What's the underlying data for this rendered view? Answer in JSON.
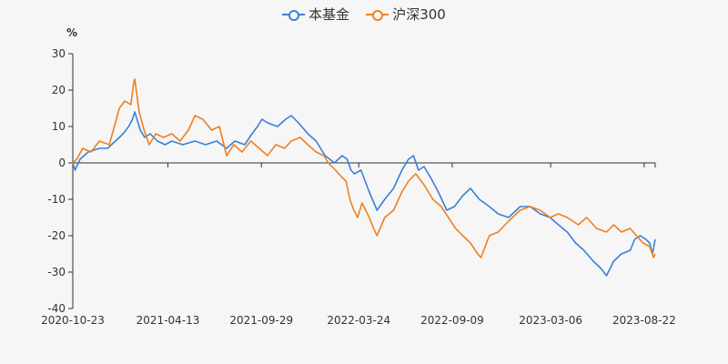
{
  "chart_data": {
    "type": "line",
    "title": "",
    "unit_label": "%",
    "xlabel": "",
    "ylabel": "%",
    "ylim": [
      -40,
      30
    ],
    "yticks": [
      30,
      20,
      10,
      0,
      -10,
      -20,
      -30,
      -40
    ],
    "grid": false,
    "legend_position": "top-center",
    "x_start": "2020-10-23",
    "x_end": "2023-09-11",
    "xtick_labels": [
      "2020-10-23",
      "2021-04-13",
      "2021-09-29",
      "2022-03-24",
      "2022-09-09",
      "2023-03-06",
      "2023-08-22"
    ],
    "series": [
      {
        "name": "本基金",
        "color": "#3b7fd6",
        "points": [
          [
            "2020-10-23",
            0
          ],
          [
            "2020-10-27",
            -2
          ],
          [
            "2020-11-05",
            1
          ],
          [
            "2020-11-20",
            3
          ],
          [
            "2020-12-10",
            4
          ],
          [
            "2020-12-25",
            4
          ],
          [
            "2021-01-08",
            6
          ],
          [
            "2021-01-22",
            8
          ],
          [
            "2021-02-01",
            10
          ],
          [
            "2021-02-08",
            12
          ],
          [
            "2021-02-12",
            14
          ],
          [
            "2021-02-22",
            9
          ],
          [
            "2021-03-02",
            7
          ],
          [
            "2021-03-12",
            8
          ],
          [
            "2021-03-25",
            6
          ],
          [
            "2021-04-08",
            5
          ],
          [
            "2021-04-20",
            6
          ],
          [
            "2021-05-10",
            5
          ],
          [
            "2021-06-01",
            6
          ],
          [
            "2021-06-20",
            5
          ],
          [
            "2021-07-10",
            6
          ],
          [
            "2021-07-28",
            4
          ],
          [
            "2021-08-12",
            6
          ],
          [
            "2021-08-30",
            5
          ],
          [
            "2021-09-12",
            8
          ],
          [
            "2021-09-22",
            10
          ],
          [
            "2021-09-30",
            12
          ],
          [
            "2021-10-10",
            11
          ],
          [
            "2021-10-28",
            10
          ],
          [
            "2021-11-12",
            12
          ],
          [
            "2021-11-22",
            13
          ],
          [
            "2021-12-05",
            11
          ],
          [
            "2021-12-22",
            8
          ],
          [
            "2022-01-06",
            6
          ],
          [
            "2022-01-22",
            2
          ],
          [
            "2022-02-08",
            0
          ],
          [
            "2022-02-22",
            2
          ],
          [
            "2022-03-03",
            1
          ],
          [
            "2022-03-10",
            -2
          ],
          [
            "2022-03-16",
            -3
          ],
          [
            "2022-03-28",
            -2
          ],
          [
            "2022-04-12",
            -8
          ],
          [
            "2022-04-26",
            -13
          ],
          [
            "2022-05-10",
            -10
          ],
          [
            "2022-05-26",
            -7
          ],
          [
            "2022-06-10",
            -2
          ],
          [
            "2022-06-22",
            1
          ],
          [
            "2022-07-01",
            2
          ],
          [
            "2022-07-10",
            -2
          ],
          [
            "2022-07-20",
            -1
          ],
          [
            "2022-08-01",
            -4
          ],
          [
            "2022-08-15",
            -8
          ],
          [
            "2022-08-30",
            -13
          ],
          [
            "2022-09-13",
            -12
          ],
          [
            "2022-09-28",
            -9
          ],
          [
            "2022-10-12",
            -7
          ],
          [
            "2022-10-28",
            -10
          ],
          [
            "2022-11-15",
            -12
          ],
          [
            "2022-12-01",
            -14
          ],
          [
            "2022-12-20",
            -15
          ],
          [
            "2023-01-10",
            -12
          ],
          [
            "2023-01-28",
            -12
          ],
          [
            "2023-02-15",
            -14
          ],
          [
            "2023-03-05",
            -15
          ],
          [
            "2023-03-20",
            -17
          ],
          [
            "2023-04-05",
            -19
          ],
          [
            "2023-04-20",
            -22
          ],
          [
            "2023-05-05",
            -24
          ],
          [
            "2023-05-22",
            -27
          ],
          [
            "2023-06-05",
            -29
          ],
          [
            "2023-06-15",
            -31
          ],
          [
            "2023-06-28",
            -27
          ],
          [
            "2023-07-12",
            -25
          ],
          [
            "2023-07-28",
            -24
          ],
          [
            "2023-08-05",
            -21
          ],
          [
            "2023-08-15",
            -20
          ],
          [
            "2023-08-25",
            -21
          ],
          [
            "2023-09-01",
            -22
          ],
          [
            "2023-09-06",
            -25
          ],
          [
            "2023-09-11",
            -21
          ]
        ]
      },
      {
        "name": "沪深300",
        "color": "#f07f1f",
        "points": [
          [
            "2020-10-23",
            0
          ],
          [
            "2020-10-30",
            1
          ],
          [
            "2020-11-10",
            4
          ],
          [
            "2020-11-25",
            3
          ],
          [
            "2020-12-10",
            6
          ],
          [
            "2020-12-28",
            5
          ],
          [
            "2021-01-08",
            11
          ],
          [
            "2021-01-15",
            15
          ],
          [
            "2021-01-25",
            17
          ],
          [
            "2021-02-05",
            16
          ],
          [
            "2021-02-10",
            22
          ],
          [
            "2021-02-12",
            23
          ],
          [
            "2021-02-20",
            14
          ],
          [
            "2021-03-01",
            9
          ],
          [
            "2021-03-10",
            5
          ],
          [
            "2021-03-22",
            8
          ],
          [
            "2021-04-05",
            7
          ],
          [
            "2021-04-20",
            8
          ],
          [
            "2021-05-05",
            6
          ],
          [
            "2021-05-20",
            9
          ],
          [
            "2021-06-01",
            13
          ],
          [
            "2021-06-15",
            12
          ],
          [
            "2021-07-01",
            9
          ],
          [
            "2021-07-15",
            10
          ],
          [
            "2021-07-28",
            2
          ],
          [
            "2021-08-10",
            5
          ],
          [
            "2021-08-25",
            3
          ],
          [
            "2021-09-10",
            6
          ],
          [
            "2021-09-25",
            4
          ],
          [
            "2021-10-10",
            2
          ],
          [
            "2021-10-25",
            5
          ],
          [
            "2021-11-10",
            4
          ],
          [
            "2021-11-22",
            6
          ],
          [
            "2021-12-08",
            7
          ],
          [
            "2021-12-22",
            5
          ],
          [
            "2022-01-06",
            3
          ],
          [
            "2022-01-20",
            2
          ],
          [
            "2022-01-28",
            0
          ],
          [
            "2022-02-10",
            -2
          ],
          [
            "2022-02-22",
            -4
          ],
          [
            "2022-03-01",
            -5
          ],
          [
            "2022-03-08",
            -10
          ],
          [
            "2022-03-15",
            -13
          ],
          [
            "2022-03-22",
            -15
          ],
          [
            "2022-03-30",
            -11
          ],
          [
            "2022-04-12",
            -15
          ],
          [
            "2022-04-20",
            -18
          ],
          [
            "2022-04-26",
            -20
          ],
          [
            "2022-05-10",
            -15
          ],
          [
            "2022-05-26",
            -13
          ],
          [
            "2022-06-10",
            -8
          ],
          [
            "2022-06-22",
            -5
          ],
          [
            "2022-07-05",
            -3
          ],
          [
            "2022-07-20",
            -6
          ],
          [
            "2022-08-05",
            -10
          ],
          [
            "2022-08-20",
            -12
          ],
          [
            "2022-09-02",
            -15
          ],
          [
            "2022-09-15",
            -18
          ],
          [
            "2022-09-28",
            -20
          ],
          [
            "2022-10-12",
            -22
          ],
          [
            "2022-10-25",
            -25
          ],
          [
            "2022-10-31",
            -26
          ],
          [
            "2022-11-15",
            -20
          ],
          [
            "2022-12-01",
            -19
          ],
          [
            "2022-12-20",
            -16
          ],
          [
            "2023-01-10",
            -13
          ],
          [
            "2023-01-28",
            -12
          ],
          [
            "2023-02-15",
            -13
          ],
          [
            "2023-03-05",
            -15
          ],
          [
            "2023-03-20",
            -14
          ],
          [
            "2023-04-05",
            -15
          ],
          [
            "2023-04-25",
            -17
          ],
          [
            "2023-05-10",
            -15
          ],
          [
            "2023-05-28",
            -18
          ],
          [
            "2023-06-15",
            -19
          ],
          [
            "2023-06-28",
            -17
          ],
          [
            "2023-07-12",
            -19
          ],
          [
            "2023-07-28",
            -18
          ],
          [
            "2023-08-08",
            -20
          ],
          [
            "2023-08-20",
            -22
          ],
          [
            "2023-09-01",
            -23
          ],
          [
            "2023-09-08",
            -26
          ],
          [
            "2023-09-11",
            -25
          ]
        ]
      }
    ]
  }
}
